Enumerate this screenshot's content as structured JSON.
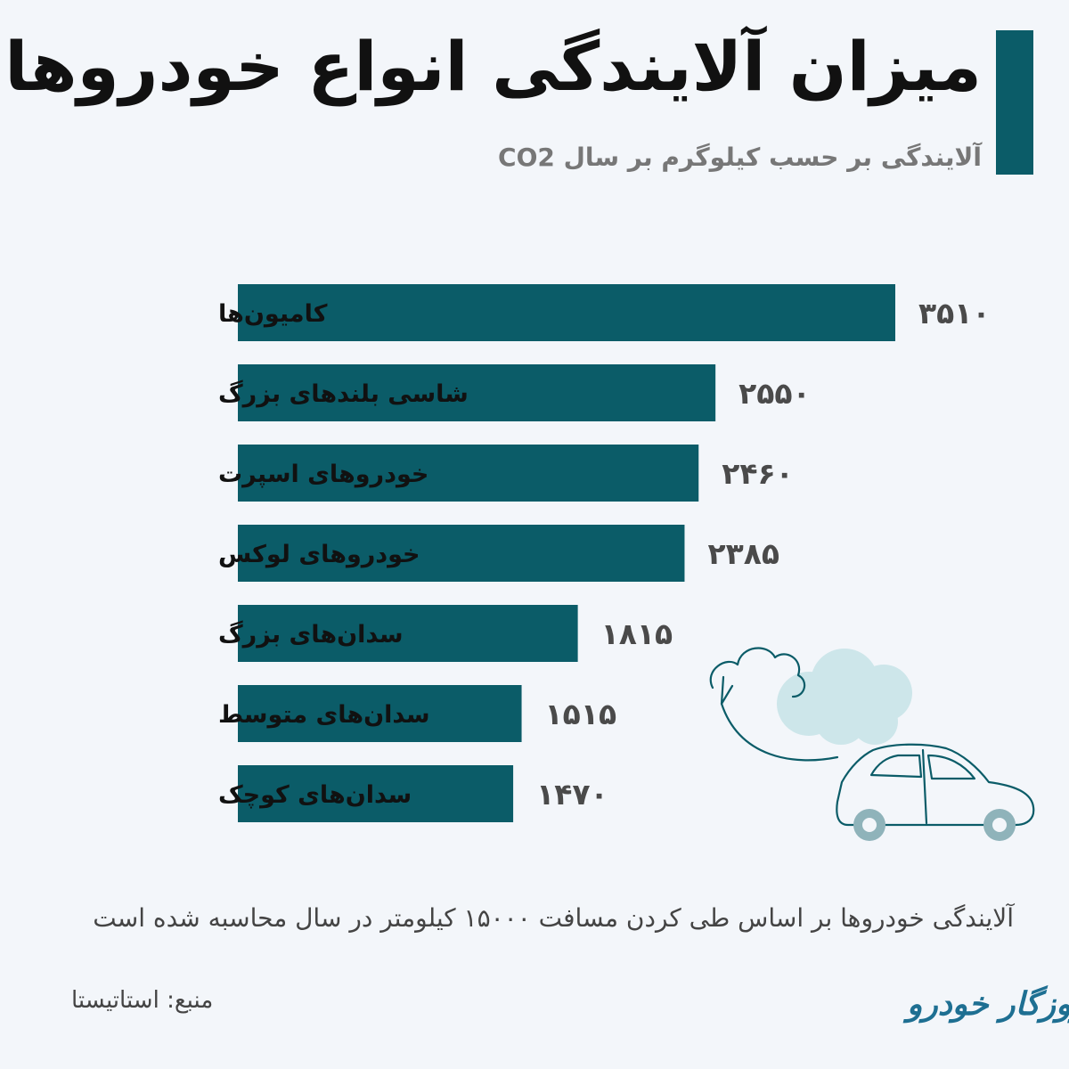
{
  "header": {
    "title": "میزان آلایندگی انواع خودروها",
    "subtitle": "آلایندگی بر حسب کیلوگرم بر سال CO2"
  },
  "chart_data": {
    "type": "bar",
    "orientation": "horizontal",
    "categories": [
      "کامیون‌ها",
      "شاسی بلندهای بزرگ",
      "خودروهای اسپرت",
      "خودروهای لوکس",
      "سدان‌های بزرگ",
      "سدان‌های متوسط",
      "سدان‌های کوچک"
    ],
    "values": [
      3510,
      2550,
      2460,
      2385,
      1815,
      1515,
      1470
    ],
    "value_labels": [
      "۳۵۱۰",
      "۲۵۵۰",
      "۲۴۶۰",
      "۲۳۸۵",
      "۱۸۱۵",
      "۱۵۱۵",
      "۱۴۷۰"
    ],
    "bar_color": "#0b5c68",
    "grid": false,
    "legend": "none"
  },
  "footer": {
    "note": "آلایندگی خودروها بر اساس طی کردن مسافت ۱۵۰۰۰ کیلومتر در سال محاسبه شده است",
    "source": "منبع: استاتیستا",
    "logo_text": "روزگار خودرو"
  },
  "illustration": {
    "icon": "car-emission-cloud-icon",
    "cloud_color": "#cde6ea",
    "line_color": "#0b5c68"
  }
}
